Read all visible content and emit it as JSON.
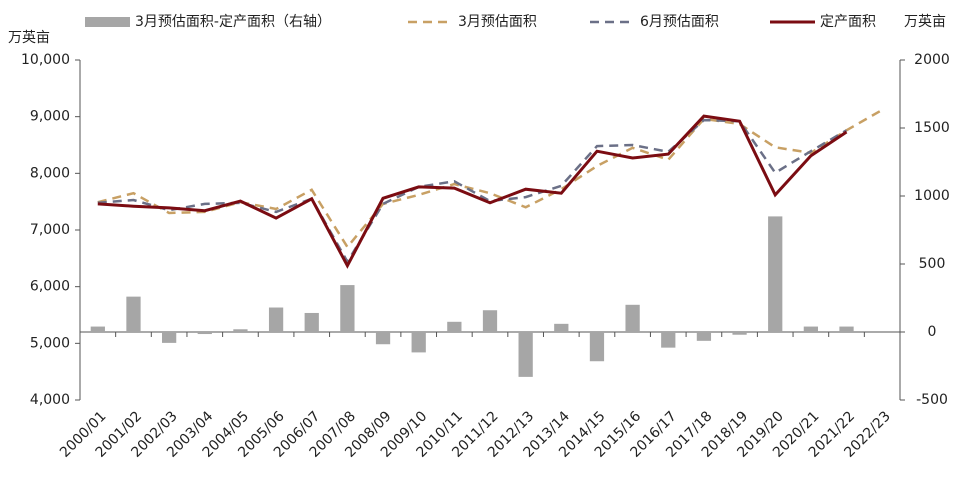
{
  "chart_data": {
    "type": "combo",
    "y_label": "万英亩",
    "y2_label": "万英亩",
    "categories": [
      "2000/01",
      "2001/02",
      "2002/03",
      "2003/04",
      "2004/05",
      "2005/06",
      "2006/07",
      "2007/08",
      "2008/09",
      "2009/10",
      "2010/11",
      "2011/12",
      "2012/13",
      "2013/14",
      "2014/15",
      "2015/16",
      "2016/17",
      "2017/18",
      "2018/19",
      "2019/20",
      "2020/21",
      "2021/22",
      "2022/23"
    ],
    "series": [
      {
        "name": "3月预估面积-定产面积（右轴）",
        "type": "bar",
        "axis": "y2",
        "color": "#a6a6a6",
        "values": [
          40,
          260,
          -80,
          -15,
          20,
          180,
          140,
          345,
          -90,
          -150,
          75,
          160,
          -330,
          60,
          -215,
          200,
          -115,
          -65,
          -20,
          850,
          40,
          40,
          null
        ]
      },
      {
        "name": "3月预估面积",
        "type": "line",
        "dashed": true,
        "color": "#c8a064",
        "values": [
          7490,
          7650,
          7300,
          7320,
          7490,
          7370,
          7710,
          6700,
          7460,
          7620,
          7810,
          7650,
          7400,
          7720,
          8130,
          8450,
          8240,
          8960,
          8870,
          8460,
          8360,
          8760,
          9120
        ]
      },
      {
        "name": "6月预估面积",
        "type": "line",
        "dashed": true,
        "color": "#6b7087",
        "values": [
          7480,
          7530,
          7350,
          7460,
          7480,
          7320,
          7550,
          6440,
          7460,
          7760,
          7860,
          7510,
          7580,
          7780,
          8480,
          8500,
          8380,
          8940,
          8920,
          8010,
          8390,
          8760,
          null
        ]
      },
      {
        "name": "定产面积",
        "type": "line",
        "dashed": false,
        "color": "#7b0c12",
        "values": [
          7460,
          7420,
          7390,
          7340,
          7510,
          7210,
          7550,
          6370,
          7560,
          7760,
          7740,
          7480,
          7720,
          7650,
          8390,
          8270,
          8340,
          9010,
          8920,
          7620,
          8310,
          8730,
          null
        ]
      }
    ],
    "ylim": [
      4000,
      10000
    ],
    "yticks": [
      {
        "value": 4000,
        "label": "4,000"
      },
      {
        "value": 5000,
        "label": "5,000"
      },
      {
        "value": 6000,
        "label": "6,000"
      },
      {
        "value": 7000,
        "label": "7,000"
      },
      {
        "value": 8000,
        "label": "8,000"
      },
      {
        "value": 9000,
        "label": "9,000"
      },
      {
        "value": 10000,
        "label": "10,000"
      }
    ],
    "y2lim": [
      -500,
      2000
    ],
    "y2ticks": [
      -500,
      0,
      500,
      1000,
      1500,
      2000
    ],
    "grid": false
  }
}
